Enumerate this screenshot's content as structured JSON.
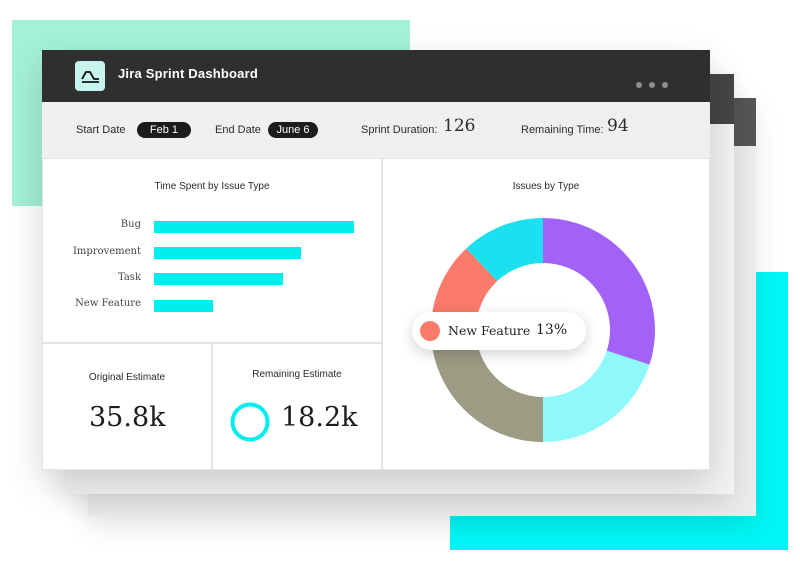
{
  "window": {
    "title": "Jira Sprint Dashboard",
    "accent": "#00eeee"
  },
  "info_bar": {
    "start_label": "Start Date",
    "start_value": "Feb  1",
    "end_label": "End Date",
    "end_value": "June  6",
    "duration_label": "Sprint Duration:",
    "duration_value": "126",
    "remaining_label": "Remaining Time:",
    "remaining_value": "94"
  },
  "time_spent": {
    "title": "Time Spent by Issue Type",
    "bars": [
      {
        "label": "Bug",
        "value": 1.0
      },
      {
        "label": "Improvement",
        "value": 0.735
      },
      {
        "label": "Task",
        "value": 0.645
      },
      {
        "label": "New Feature",
        "value": 0.295
      }
    ]
  },
  "original_estimate": {
    "title": "Original Estimate",
    "value": "35.8k"
  },
  "remaining_estimate": {
    "title": "Remaining Estimate",
    "value": "18.2k"
  },
  "issues_by_type": {
    "title": "Issues by Type",
    "tooltip": {
      "name": "New Feature",
      "percent": "13%",
      "color": "#fa7a6c"
    },
    "chart_data": {
      "type": "pie",
      "title": "Issues by Type",
      "slices": [
        {
          "name": "Purple segment",
          "value": 30,
          "color": "#a262f8"
        },
        {
          "name": "Light cyan segment",
          "value": 20,
          "color": "#8ef8fb"
        },
        {
          "name": "Olive segment",
          "value": 25,
          "color": "#9c9b83"
        },
        {
          "name": "New Feature",
          "value": 13,
          "color": "#fa7a6c"
        },
        {
          "name": "Cyan segment",
          "value": 12,
          "color": "#1ae0ef"
        }
      ]
    }
  }
}
